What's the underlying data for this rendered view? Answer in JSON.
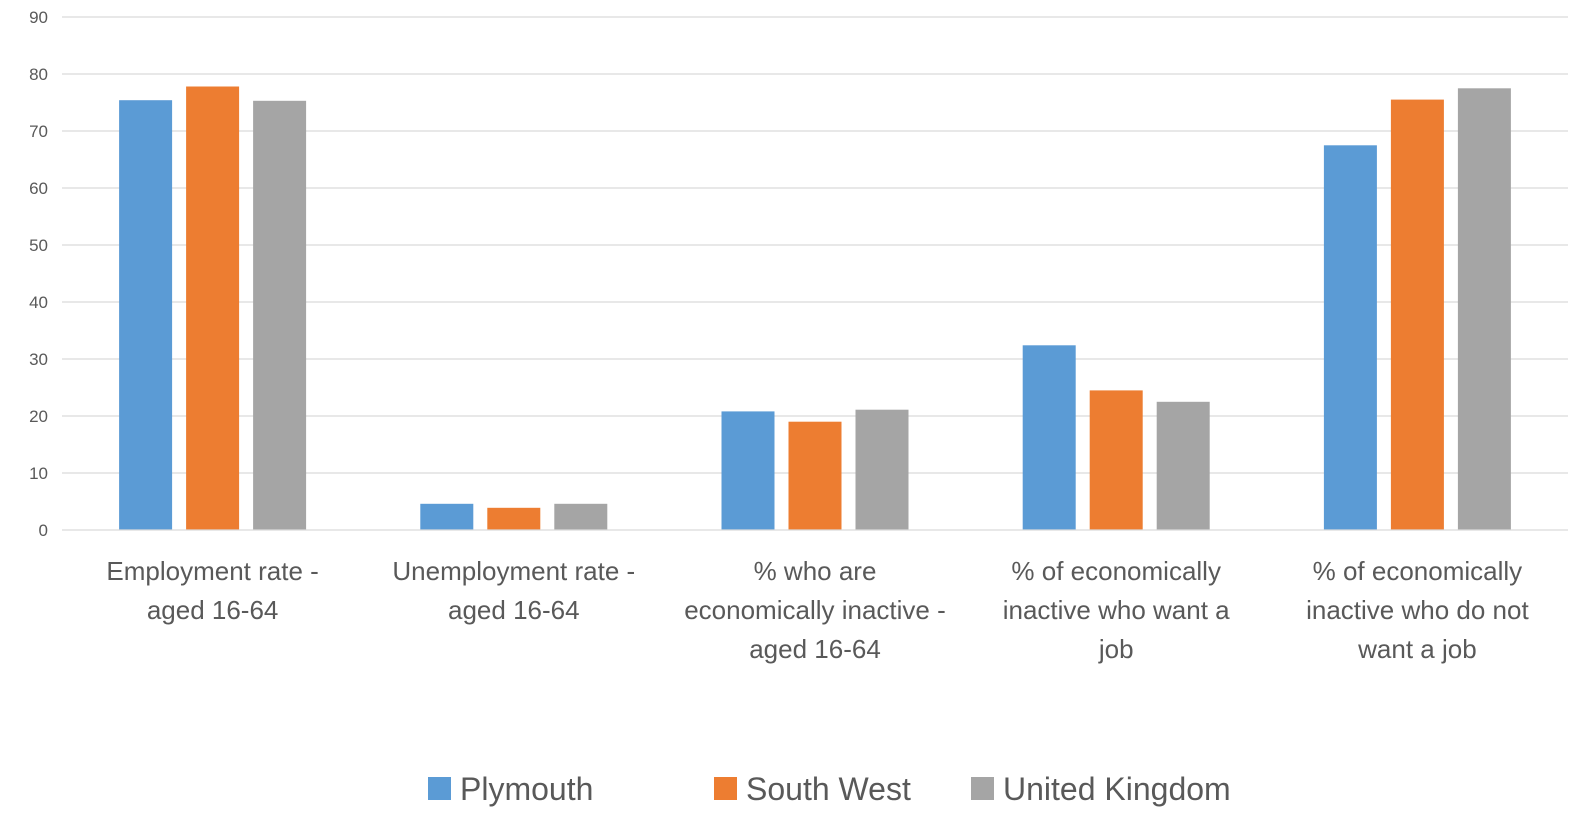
{
  "chart_data": {
    "type": "bar",
    "title": "",
    "xlabel": "",
    "ylabel": "",
    "ylim": [
      0,
      90
    ],
    "yticks": [
      0,
      10,
      20,
      30,
      40,
      50,
      60,
      70,
      80,
      90
    ],
    "grid": true,
    "legend_position": "bottom",
    "categories": [
      [
        "Employment rate -",
        "aged 16-64"
      ],
      [
        "Unemployment rate -",
        "aged 16-64"
      ],
      [
        "% who are",
        "economically inactive -",
        "aged 16-64"
      ],
      [
        "% of economically",
        "inactive who want a",
        "job"
      ],
      [
        "% of economically",
        "inactive who do not",
        "want a job"
      ]
    ],
    "series": [
      {
        "name": "Plymouth",
        "color": "#5B9BD5",
        "values": [
          75.4,
          4.6,
          20.8,
          32.4,
          67.5
        ]
      },
      {
        "name": "South West",
        "color": "#ED7D31",
        "values": [
          77.8,
          3.9,
          19.0,
          24.5,
          75.5
        ]
      },
      {
        "name": "United Kingdom",
        "color": "#A5A5A5",
        "values": [
          75.3,
          4.6,
          21.1,
          22.5,
          77.5
        ]
      }
    ]
  }
}
